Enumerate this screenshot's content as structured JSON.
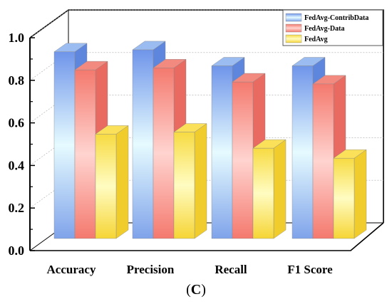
{
  "chart_data": {
    "type": "bar",
    "categories": [
      "Accuracy",
      "Precision",
      "Recall",
      "F1 Score"
    ],
    "series": [
      {
        "name": "FedAvg-ContribData",
        "values": [
          0.93,
          0.94,
          0.86,
          0.86
        ]
      },
      {
        "name": "FedAvg-Data",
        "values": [
          0.84,
          0.85,
          0.78,
          0.77
        ]
      },
      {
        "name": "FedAvg",
        "values": [
          0.52,
          0.53,
          0.45,
          0.4
        ]
      }
    ],
    "ylim": [
      0,
      1.0
    ],
    "yticks": [
      "0.0",
      "0.2",
      "0.4",
      "0.6",
      "0.8",
      "1.0"
    ],
    "legend_position": "top-right",
    "colors": [
      "#9bbcf0",
      "#f28a80",
      "#fbe05a"
    ],
    "style": "3d-bar"
  },
  "caption": {
    "open": "(",
    "letter": "C",
    "close": ")"
  }
}
